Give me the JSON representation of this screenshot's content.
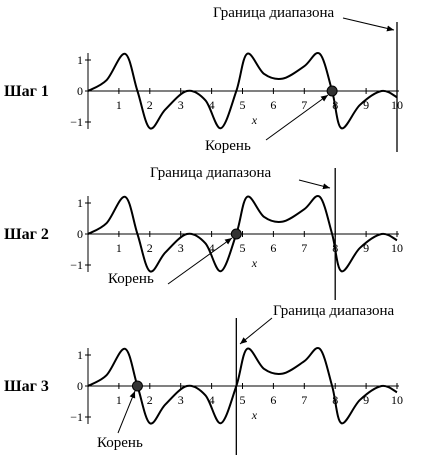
{
  "panels": [
    {
      "step": "Шаг 1",
      "boundary": "Граница диапазона",
      "root": "Корень"
    },
    {
      "step": "Шаг 2",
      "boundary": "Граница диапазона",
      "root": "Корень"
    },
    {
      "step": "Шаг 3",
      "boundary": "Граница диапазона",
      "root": "Корень"
    }
  ],
  "axis": {
    "x_label": "x",
    "x_ticks": [
      "1",
      "2",
      "3",
      "4",
      "5",
      "6",
      "7",
      "8",
      "9",
      "10"
    ],
    "y_ticks": [
      "1",
      "0",
      "−1"
    ]
  }
}
